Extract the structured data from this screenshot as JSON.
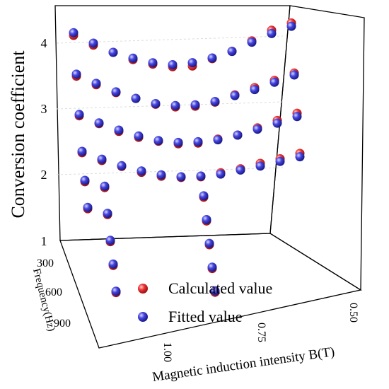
{
  "chart_data": {
    "type": "scatter",
    "dimensions": "3d",
    "zlabel": "Conversion coefficient",
    "ylabel": "Frequency(Hz)",
    "xlabel": "Magnetic induction intensity B(T)",
    "z_ticks": [
      "1",
      "2",
      "3",
      "4"
    ],
    "z_range": [
      1,
      4.5
    ],
    "y_ticks": [
      "300",
      "600",
      "900"
    ],
    "y_range": [
      50,
      1000
    ],
    "x_ticks": [
      "1.00",
      "0.75",
      "0.50"
    ],
    "x_range": [
      0.45,
      1.1
    ],
    "legend_position": "inside-bottom-right",
    "series": [
      {
        "name": "Calculated value",
        "color": "#e8282b",
        "points": [
          {
            "x": 0.5,
            "y": 100,
            "z": 4.35
          },
          {
            "x": 0.55,
            "y": 100,
            "z": 4.25
          },
          {
            "x": 0.6,
            "y": 100,
            "z": 4.1
          },
          {
            "x": 0.65,
            "y": 100,
            "z": 3.95
          },
          {
            "x": 0.7,
            "y": 100,
            "z": 3.85
          },
          {
            "x": 0.75,
            "y": 100,
            "z": 3.75
          },
          {
            "x": 0.8,
            "y": 100,
            "z": 3.75
          },
          {
            "x": 0.85,
            "y": 100,
            "z": 3.8
          },
          {
            "x": 0.9,
            "y": 100,
            "z": 3.88
          },
          {
            "x": 0.95,
            "y": 100,
            "z": 4.0
          },
          {
            "x": 1.0,
            "y": 100,
            "z": 4.12
          },
          {
            "x": 1.05,
            "y": 100,
            "z": 4.28
          },
          {
            "x": 0.5,
            "y": 200,
            "z": 3.75
          },
          {
            "x": 0.55,
            "y": 200,
            "z": 3.65
          },
          {
            "x": 0.6,
            "y": 200,
            "z": 3.55
          },
          {
            "x": 0.65,
            "y": 200,
            "z": 3.45
          },
          {
            "x": 0.7,
            "y": 200,
            "z": 3.35
          },
          {
            "x": 0.75,
            "y": 200,
            "z": 3.3
          },
          {
            "x": 0.8,
            "y": 200,
            "z": 3.3
          },
          {
            "x": 0.85,
            "y": 200,
            "z": 3.35
          },
          {
            "x": 0.9,
            "y": 200,
            "z": 3.45
          },
          {
            "x": 0.95,
            "y": 200,
            "z": 3.55
          },
          {
            "x": 1.0,
            "y": 200,
            "z": 3.68
          },
          {
            "x": 1.05,
            "y": 200,
            "z": 3.82
          },
          {
            "x": 0.5,
            "y": 300,
            "z": 3.3
          },
          {
            "x": 0.55,
            "y": 300,
            "z": 3.2
          },
          {
            "x": 0.6,
            "y": 300,
            "z": 3.1
          },
          {
            "x": 0.65,
            "y": 300,
            "z": 3.0
          },
          {
            "x": 0.7,
            "y": 300,
            "z": 2.95
          },
          {
            "x": 0.75,
            "y": 300,
            "z": 2.9
          },
          {
            "x": 0.8,
            "y": 300,
            "z": 2.9
          },
          {
            "x": 0.85,
            "y": 300,
            "z": 2.95
          },
          {
            "x": 0.9,
            "y": 300,
            "z": 3.02
          },
          {
            "x": 0.95,
            "y": 300,
            "z": 3.12
          },
          {
            "x": 1.0,
            "y": 300,
            "z": 3.25
          },
          {
            "x": 1.05,
            "y": 300,
            "z": 3.38
          },
          {
            "x": 0.5,
            "y": 400,
            "z": 2.85
          },
          {
            "x": 0.55,
            "y": 400,
            "z": 2.78
          },
          {
            "x": 0.6,
            "y": 400,
            "z": 2.72
          },
          {
            "x": 0.65,
            "y": 400,
            "z": 2.65
          },
          {
            "x": 0.7,
            "y": 400,
            "z": 2.6
          },
          {
            "x": 0.75,
            "y": 400,
            "z": 2.55
          },
          {
            "x": 0.8,
            "y": 400,
            "z": 2.55
          },
          {
            "x": 0.85,
            "y": 400,
            "z": 2.58
          },
          {
            "x": 0.9,
            "y": 400,
            "z": 2.65
          },
          {
            "x": 0.95,
            "y": 400,
            "z": 2.75
          },
          {
            "x": 1.0,
            "y": 400,
            "z": 2.85
          },
          {
            "x": 1.05,
            "y": 400,
            "z": 2.98
          },
          {
            "x": 0.75,
            "y": 500,
            "z": 2.4
          },
          {
            "x": 1.0,
            "y": 500,
            "z": 2.6
          },
          {
            "x": 1.05,
            "y": 500,
            "z": 2.7
          },
          {
            "x": 0.75,
            "y": 600,
            "z": 2.2
          },
          {
            "x": 1.0,
            "y": 600,
            "z": 2.35
          },
          {
            "x": 1.05,
            "y": 600,
            "z": 2.45
          },
          {
            "x": 0.75,
            "y": 700,
            "z": 2.0
          },
          {
            "x": 1.0,
            "y": 700,
            "z": 2.1
          },
          {
            "x": 0.75,
            "y": 800,
            "z": 1.8
          },
          {
            "x": 1.0,
            "y": 800,
            "z": 1.9
          },
          {
            "x": 0.75,
            "y": 900,
            "z": 1.6
          },
          {
            "x": 1.0,
            "y": 900,
            "z": 1.65
          }
        ]
      },
      {
        "name": "Fitted value",
        "color": "#3b3bd6",
        "points": [
          {
            "x": 0.5,
            "y": 100,
            "z": 4.3
          },
          {
            "x": 0.55,
            "y": 100,
            "z": 4.2
          },
          {
            "x": 0.6,
            "y": 100,
            "z": 4.08
          },
          {
            "x": 0.65,
            "y": 100,
            "z": 3.95
          },
          {
            "x": 0.7,
            "y": 100,
            "z": 3.86
          },
          {
            "x": 0.75,
            "y": 100,
            "z": 3.8
          },
          {
            "x": 0.8,
            "y": 100,
            "z": 3.78
          },
          {
            "x": 0.85,
            "y": 100,
            "z": 3.82
          },
          {
            "x": 0.9,
            "y": 100,
            "z": 3.9
          },
          {
            "x": 0.95,
            "y": 100,
            "z": 4.0
          },
          {
            "x": 1.0,
            "y": 100,
            "z": 4.15
          },
          {
            "x": 1.05,
            "y": 100,
            "z": 4.32
          },
          {
            "x": 0.5,
            "y": 200,
            "z": 3.72
          },
          {
            "x": 0.55,
            "y": 200,
            "z": 3.62
          },
          {
            "x": 0.6,
            "y": 200,
            "z": 3.52
          },
          {
            "x": 0.65,
            "y": 200,
            "z": 3.44
          },
          {
            "x": 0.7,
            "y": 200,
            "z": 3.36
          },
          {
            "x": 0.75,
            "y": 200,
            "z": 3.32
          },
          {
            "x": 0.8,
            "y": 200,
            "z": 3.32
          },
          {
            "x": 0.85,
            "y": 200,
            "z": 3.36
          },
          {
            "x": 0.9,
            "y": 200,
            "z": 3.45
          },
          {
            "x": 0.95,
            "y": 200,
            "z": 3.56
          },
          {
            "x": 1.0,
            "y": 200,
            "z": 3.7
          },
          {
            "x": 1.05,
            "y": 200,
            "z": 3.85
          },
          {
            "x": 0.5,
            "y": 300,
            "z": 3.25
          },
          {
            "x": 0.55,
            "y": 300,
            "z": 3.16
          },
          {
            "x": 0.6,
            "y": 300,
            "z": 3.08
          },
          {
            "x": 0.65,
            "y": 300,
            "z": 3.0
          },
          {
            "x": 0.7,
            "y": 300,
            "z": 2.94
          },
          {
            "x": 0.75,
            "y": 300,
            "z": 2.92
          },
          {
            "x": 0.8,
            "y": 300,
            "z": 2.92
          },
          {
            "x": 0.85,
            "y": 300,
            "z": 2.96
          },
          {
            "x": 0.9,
            "y": 300,
            "z": 3.04
          },
          {
            "x": 0.95,
            "y": 300,
            "z": 3.14
          },
          {
            "x": 1.0,
            "y": 300,
            "z": 3.26
          },
          {
            "x": 1.05,
            "y": 300,
            "z": 3.4
          },
          {
            "x": 0.5,
            "y": 400,
            "z": 2.8
          },
          {
            "x": 0.55,
            "y": 400,
            "z": 2.74
          },
          {
            "x": 0.6,
            "y": 400,
            "z": 2.68
          },
          {
            "x": 0.65,
            "y": 400,
            "z": 2.63
          },
          {
            "x": 0.7,
            "y": 400,
            "z": 2.58
          },
          {
            "x": 0.75,
            "y": 400,
            "z": 2.56
          },
          {
            "x": 0.8,
            "y": 400,
            "z": 2.56
          },
          {
            "x": 0.85,
            "y": 400,
            "z": 2.6
          },
          {
            "x": 0.9,
            "y": 400,
            "z": 2.67
          },
          {
            "x": 0.95,
            "y": 400,
            "z": 2.76
          },
          {
            "x": 1.0,
            "y": 400,
            "z": 2.87
          },
          {
            "x": 1.05,
            "y": 400,
            "z": 3.0
          },
          {
            "x": 0.75,
            "y": 500,
            "z": 2.42
          },
          {
            "x": 1.0,
            "y": 500,
            "z": 2.62
          },
          {
            "x": 1.05,
            "y": 500,
            "z": 2.72
          },
          {
            "x": 0.75,
            "y": 600,
            "z": 2.22
          },
          {
            "x": 1.0,
            "y": 600,
            "z": 2.37
          },
          {
            "x": 1.05,
            "y": 600,
            "z": 2.47
          },
          {
            "x": 0.75,
            "y": 700,
            "z": 2.02
          },
          {
            "x": 1.0,
            "y": 700,
            "z": 2.12
          },
          {
            "x": 0.75,
            "y": 800,
            "z": 1.82
          },
          {
            "x": 1.0,
            "y": 800,
            "z": 1.92
          },
          {
            "x": 0.75,
            "y": 900,
            "z": 1.62
          },
          {
            "x": 1.0,
            "y": 900,
            "z": 1.67
          }
        ]
      }
    ]
  }
}
